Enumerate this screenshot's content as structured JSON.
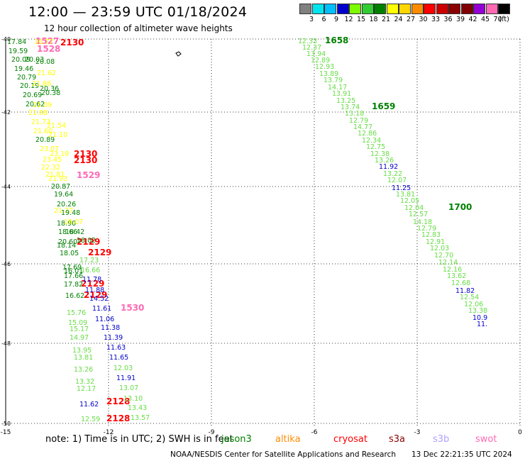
{
  "header": {
    "title": "12:00 — 23:59 UTC 01/18/2024",
    "subtitle": "12 hour collection of altimeter wave heights"
  },
  "legend": {
    "unit": "(ft)",
    "bins": [
      {
        "label": "3",
        "color": "#808080"
      },
      {
        "label": "6",
        "color": "#00e5ee"
      },
      {
        "label": "9",
        "color": "#00bfff"
      },
      {
        "label": "12",
        "color": "#0000cd"
      },
      {
        "label": "15",
        "color": "#7cfc00"
      },
      {
        "label": "18",
        "color": "#32cd32"
      },
      {
        "label": "21",
        "color": "#008000"
      },
      {
        "label": "24",
        "color": "#ffff00"
      },
      {
        "label": "27",
        "color": "#ffd700"
      },
      {
        "label": "30",
        "color": "#ff8c00"
      },
      {
        "label": "33",
        "color": "#ff0000"
      },
      {
        "label": "36",
        "color": "#cd0000"
      },
      {
        "label": "39",
        "color": "#8b0000"
      },
      {
        "label": "42",
        "color": "#800000"
      },
      {
        "label": "45",
        "color": "#9400d3"
      },
      {
        "label": "70",
        "color": "#ff69b4"
      },
      {
        "label": "",
        "color": "#000000"
      }
    ]
  },
  "map": {
    "lon_ticks": [
      "-15",
      "-12",
      "-9",
      "-6",
      "-3",
      "0"
    ],
    "lat_ticks": [
      "-40",
      "-42",
      "-44",
      "-46",
      "-48",
      "-50"
    ],
    "colors": {
      "grey": "#808080",
      "darkgreen": "#008000",
      "green": "#00aa00",
      "lightgreen": "#66dd44",
      "yellow": "#ffff00",
      "blue": "#0000cd",
      "red": "#ff0000",
      "pink": "#ff69b4"
    },
    "readings": [
      {
        "v": "1658",
        "c": "darkgreen",
        "time": true
      },
      {
        "v": "1659",
        "c": "darkgreen",
        "time": true
      },
      {
        "v": "1700",
        "c": "darkgreen",
        "time": true
      },
      {
        "v": "2130",
        "c": "red",
        "time": true
      },
      {
        "v": "2130",
        "c": "red",
        "time": true
      },
      {
        "v": "2130",
        "c": "red",
        "time": true
      },
      {
        "v": "2129",
        "c": "red",
        "time": true
      },
      {
        "v": "2129",
        "c": "red",
        "time": true
      },
      {
        "v": "2129",
        "c": "red",
        "time": true
      },
      {
        "v": "2129",
        "c": "red",
        "time": true
      },
      {
        "v": "2128",
        "c": "red",
        "time": true
      },
      {
        "v": "2128",
        "c": "red",
        "time": true
      },
      {
        "v": "1528",
        "c": "pink",
        "time": true
      },
      {
        "v": "1529",
        "c": "pink",
        "time": true
      },
      {
        "v": "1530",
        "c": "pink",
        "time": true
      },
      {
        "v": "1527",
        "c": "pink",
        "time": true
      },
      {
        "v": "12.33",
        "c": "lightgreen"
      },
      {
        "v": "12.37",
        "c": "lightgreen"
      },
      {
        "v": "13.94",
        "c": "lightgreen"
      },
      {
        "v": "12.89",
        "c": "lightgreen"
      },
      {
        "v": "12.93",
        "c": "lightgreen"
      },
      {
        "v": "13.89",
        "c": "lightgreen"
      },
      {
        "v": "13.79",
        "c": "lightgreen"
      },
      {
        "v": "14.17",
        "c": "lightgreen"
      },
      {
        "v": "13.91",
        "c": "lightgreen"
      },
      {
        "v": "13.25",
        "c": "lightgreen"
      },
      {
        "v": "13.74",
        "c": "lightgreen"
      },
      {
        "v": "13.18",
        "c": "lightgreen"
      },
      {
        "v": "12.79",
        "c": "lightgreen"
      },
      {
        "v": "14.77",
        "c": "lightgreen"
      },
      {
        "v": "12.86",
        "c": "lightgreen"
      },
      {
        "v": "12.34",
        "c": "lightgreen"
      },
      {
        "v": "12.75",
        "c": "lightgreen"
      },
      {
        "v": "12.38",
        "c": "lightgreen"
      },
      {
        "v": "13.26",
        "c": "lightgreen"
      },
      {
        "v": "11.92",
        "c": "blue"
      },
      {
        "v": "13.22",
        "c": "lightgreen"
      },
      {
        "v": "12.07",
        "c": "lightgreen"
      },
      {
        "v": "11.25",
        "c": "blue"
      },
      {
        "v": "13.81",
        "c": "lightgreen"
      },
      {
        "v": "12.05",
        "c": "lightgreen"
      },
      {
        "v": "12.04",
        "c": "lightgreen"
      },
      {
        "v": "12.57",
        "c": "lightgreen"
      },
      {
        "v": "14.18",
        "c": "lightgreen"
      },
      {
        "v": "12.79",
        "c": "lightgreen"
      },
      {
        "v": "12.83",
        "c": "lightgreen"
      },
      {
        "v": "12.91",
        "c": "lightgreen"
      },
      {
        "v": "12.03",
        "c": "lightgreen"
      },
      {
        "v": "12.70",
        "c": "lightgreen"
      },
      {
        "v": "12.14",
        "c": "lightgreen"
      },
      {
        "v": "12.16",
        "c": "lightgreen"
      },
      {
        "v": "13.62",
        "c": "lightgreen"
      },
      {
        "v": "12.68",
        "c": "lightgreen"
      },
      {
        "v": "11.82",
        "c": "blue"
      },
      {
        "v": "12.54",
        "c": "lightgreen"
      },
      {
        "v": "12.06",
        "c": "lightgreen"
      },
      {
        "v": "13.38",
        "c": "lightgreen"
      },
      {
        "v": "10.9",
        "c": "blue"
      },
      {
        "v": "11.",
        "c": "blue"
      },
      {
        "v": "17.84",
        "c": "darkgreen"
      },
      {
        "v": "16.77",
        "c": "yellow"
      },
      {
        "v": "19.59",
        "c": "darkgreen"
      },
      {
        "v": "20.09",
        "c": "darkgreen"
      },
      {
        "v": "20.03",
        "c": "darkgreen"
      },
      {
        "v": "20.08",
        "c": "darkgreen"
      },
      {
        "v": "19.46",
        "c": "darkgreen"
      },
      {
        "v": "21.62",
        "c": "yellow"
      },
      {
        "v": "20.79",
        "c": "darkgreen"
      },
      {
        "v": "20.19",
        "c": "darkgreen"
      },
      {
        "v": "21.86",
        "c": "yellow"
      },
      {
        "v": "20.36",
        "c": "darkgreen"
      },
      {
        "v": "20.69",
        "c": "darkgreen"
      },
      {
        "v": "20.38",
        "c": "darkgreen"
      },
      {
        "v": "20.62",
        "c": "darkgreen"
      },
      {
        "v": "21.09",
        "c": "yellow"
      },
      {
        "v": "21.88",
        "c": "yellow"
      },
      {
        "v": "21.73",
        "c": "yellow"
      },
      {
        "v": "21.54",
        "c": "yellow"
      },
      {
        "v": "21.60",
        "c": "yellow"
      },
      {
        "v": "21.10",
        "c": "yellow"
      },
      {
        "v": "20.89",
        "c": "darkgreen"
      },
      {
        "v": "23.07",
        "c": "yellow"
      },
      {
        "v": "23.19",
        "c": "yellow"
      },
      {
        "v": "23.45",
        "c": "yellow"
      },
      {
        "v": "22.32",
        "c": "yellow"
      },
      {
        "v": "21.81",
        "c": "yellow"
      },
      {
        "v": "21.93",
        "c": "yellow"
      },
      {
        "v": "20.87",
        "c": "darkgreen"
      },
      {
        "v": "19.64",
        "c": "darkgreen"
      },
      {
        "v": "20.26",
        "c": "darkgreen"
      },
      {
        "v": "21.27",
        "c": "yellow"
      },
      {
        "v": "19.48",
        "c": "darkgreen"
      },
      {
        "v": "18.90",
        "c": "darkgreen"
      },
      {
        "v": "19.07",
        "c": "yellow"
      },
      {
        "v": "18.66",
        "c": "darkgreen"
      },
      {
        "v": "18.42",
        "c": "darkgreen"
      },
      {
        "v": "20.60",
        "c": "darkgreen"
      },
      {
        "v": "18.02",
        "c": "darkgreen"
      },
      {
        "v": "18.14",
        "c": "darkgreen"
      },
      {
        "v": "18.05",
        "c": "darkgreen"
      },
      {
        "v": "17.23",
        "c": "lightgreen"
      },
      {
        "v": "17.69",
        "c": "darkgreen"
      },
      {
        "v": "16.01",
        "c": "darkgreen"
      },
      {
        "v": "16.66",
        "c": "lightgreen"
      },
      {
        "v": "17.66",
        "c": "darkgreen"
      },
      {
        "v": "11.78",
        "c": "blue"
      },
      {
        "v": "17.82",
        "c": "darkgreen"
      },
      {
        "v": "11.88",
        "c": "blue"
      },
      {
        "v": "16.62",
        "c": "darkgreen"
      },
      {
        "v": "14.52",
        "c": "blue"
      },
      {
        "v": "11.61",
        "c": "blue"
      },
      {
        "v": "15.76",
        "c": "lightgreen"
      },
      {
        "v": "11.06",
        "c": "blue"
      },
      {
        "v": "15.09",
        "c": "lightgreen"
      },
      {
        "v": "15.17",
        "c": "lightgreen"
      },
      {
        "v": "11.38",
        "c": "blue"
      },
      {
        "v": "14.97",
        "c": "lightgreen"
      },
      {
        "v": "11.39",
        "c": "blue"
      },
      {
        "v": "13.95",
        "c": "lightgreen"
      },
      {
        "v": "11.63",
        "c": "blue"
      },
      {
        "v": "13.81",
        "c": "lightgreen"
      },
      {
        "v": "11.65",
        "c": "blue"
      },
      {
        "v": "13.26",
        "c": "lightgreen"
      },
      {
        "v": "12.03",
        "c": "lightgreen"
      },
      {
        "v": "13.32",
        "c": "lightgreen"
      },
      {
        "v": "11.91",
        "c": "blue"
      },
      {
        "v": "12.17",
        "c": "lightgreen"
      },
      {
        "v": "13.07",
        "c": "lightgreen"
      },
      {
        "v": "13.10",
        "c": "lightgreen"
      },
      {
        "v": "11.62",
        "c": "blue"
      },
      {
        "v": "13.43",
        "c": "lightgreen"
      },
      {
        "v": "12.59",
        "c": "lightgreen"
      },
      {
        "v": "13.57",
        "c": "lightgreen"
      }
    ]
  },
  "notes": {
    "note": "note: 1) Time is in UTC; 2) SWH is in feet",
    "satellites": [
      {
        "name": "jason3",
        "color": "#008000"
      },
      {
        "name": "altika",
        "color": "#ff8c00"
      },
      {
        "name": "cryosat",
        "color": "#ff0000"
      },
      {
        "name": "s3a",
        "color": "#8b0000"
      },
      {
        "name": "s3b",
        "color": "#b0a0ff"
      },
      {
        "name": "swot",
        "color": "#ff69b4"
      }
    ]
  },
  "footer": {
    "org": "NOAA/NESDIS Center for Satellite Applications and Research",
    "generated": "13 Dec 22:21:35 UTC 2024"
  }
}
